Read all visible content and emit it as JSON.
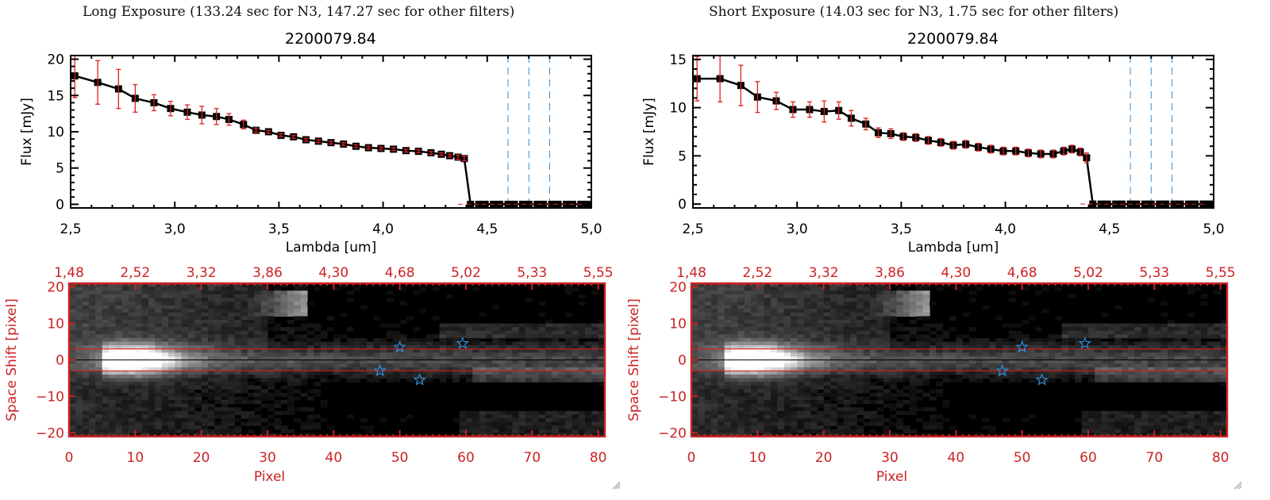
{
  "panels": [
    {
      "title": "Long Exposure (133.24 sec for N3, 147.27 sec for other filters)",
      "object_id": "2200079.84"
    },
    {
      "title": "Short Exposure (14.03 sec for N3, 1.75 sec for other filters)",
      "object_id": "2200079.84"
    }
  ],
  "chart_data": [
    {
      "type": "line",
      "title": "2200079.84",
      "subtitle": "Long Exposure (133.24 sec for N3, 147.27 sec for other filters)",
      "xlabel": "Lambda [um]",
      "ylabel": "Flux [mJy]",
      "xlim": [
        2.5,
        5.0
      ],
      "ylim": [
        -0.5,
        20.5
      ],
      "xticks": [
        "2.5",
        "3.0",
        "3.5",
        "4.0",
        "4.5",
        "5.0"
      ],
      "yticks": [
        "0",
        "5",
        "10",
        "15",
        "20"
      ],
      "grid": false,
      "series": [
        {
          "name": "flux",
          "color": "#000000",
          "x": [
            2.52,
            2.63,
            2.73,
            2.81,
            2.9,
            2.98,
            3.06,
            3.13,
            3.2,
            3.26,
            3.33,
            3.39,
            3.45,
            3.51,
            3.57,
            3.63,
            3.69,
            3.75,
            3.81,
            3.87,
            3.93,
            3.99,
            4.05,
            4.11,
            4.17,
            4.23,
            4.28,
            4.32,
            4.36,
            4.39,
            4.42,
            4.46,
            4.49,
            4.53,
            4.56,
            4.6,
            4.63,
            4.67,
            4.7,
            4.74,
            4.77,
            4.81,
            4.84,
            4.88,
            4.91,
            4.95,
            4.98
          ],
          "y": [
            17.7,
            16.8,
            15.9,
            14.6,
            14.0,
            13.2,
            12.7,
            12.3,
            12.1,
            11.7,
            11.0,
            10.2,
            10.0,
            9.5,
            9.3,
            8.9,
            8.7,
            8.5,
            8.3,
            8.0,
            7.8,
            7.7,
            7.6,
            7.4,
            7.3,
            7.1,
            6.9,
            6.7,
            6.5,
            6.3,
            0,
            0,
            0,
            0,
            0,
            0,
            0,
            0,
            0,
            0,
            0,
            0,
            0,
            0,
            0,
            0,
            0
          ],
          "yerr": [
            3.0,
            3.0,
            2.7,
            1.9,
            1.1,
            1.0,
            1.0,
            1.2,
            1.1,
            0.8,
            0.6,
            0.3,
            0.2,
            0.2,
            0.2,
            0.2,
            0.2,
            0.2,
            0.2,
            0.2,
            0.2,
            0.2,
            0.2,
            0.2,
            0.2,
            0.2,
            0.2,
            0.2,
            0.3,
            0.3,
            0,
            0,
            0,
            0,
            0,
            0,
            0,
            0,
            0,
            0,
            0,
            0,
            0,
            0,
            0,
            0,
            0
          ]
        }
      ],
      "vlines": [
        4.6,
        4.7,
        4.8
      ],
      "vline_color": "#2f8fe0",
      "zero_line_color": "#e02020",
      "errorbar_color": "#e02020"
    },
    {
      "type": "line",
      "title": "2200079.84",
      "subtitle": "Short Exposure (14.03 sec for N3, 1.75 sec for other filters)",
      "xlabel": "Lambda [um]",
      "ylabel": "Flux [mJy]",
      "xlim": [
        2.5,
        5.0
      ],
      "ylim": [
        -0.4,
        15.4
      ],
      "xticks": [
        "2.5",
        "3.0",
        "3.5",
        "4.0",
        "4.5",
        "5.0"
      ],
      "yticks": [
        "0",
        "5",
        "10",
        "15"
      ],
      "grid": false,
      "series": [
        {
          "name": "flux",
          "color": "#000000",
          "x": [
            2.52,
            2.63,
            2.73,
            2.81,
            2.9,
            2.98,
            3.06,
            3.13,
            3.2,
            3.26,
            3.33,
            3.39,
            3.45,
            3.51,
            3.57,
            3.63,
            3.69,
            3.75,
            3.81,
            3.87,
            3.93,
            3.99,
            4.05,
            4.11,
            4.17,
            4.23,
            4.28,
            4.32,
            4.36,
            4.39,
            4.42,
            4.46,
            4.49,
            4.53,
            4.56,
            4.6,
            4.63,
            4.67,
            4.7,
            4.74,
            4.77,
            4.81,
            4.84,
            4.88,
            4.91,
            4.95,
            4.98
          ],
          "y": [
            13.0,
            13.0,
            12.3,
            11.1,
            10.7,
            9.8,
            9.8,
            9.6,
            9.7,
            8.9,
            8.3,
            7.4,
            7.3,
            7.0,
            6.9,
            6.6,
            6.4,
            6.1,
            6.2,
            5.9,
            5.7,
            5.5,
            5.5,
            5.3,
            5.2,
            5.2,
            5.5,
            5.7,
            5.4,
            4.8,
            0,
            0,
            0,
            0,
            0,
            0,
            0,
            0,
            0,
            0,
            0,
            0,
            0,
            0,
            0,
            0,
            0
          ],
          "yerr": [
            2.3,
            2.4,
            2.1,
            1.6,
            0.9,
            0.8,
            0.8,
            1.1,
            0.9,
            0.8,
            0.6,
            0.5,
            0.5,
            0.4,
            0.4,
            0.4,
            0.4,
            0.4,
            0.4,
            0.4,
            0.4,
            0.4,
            0.4,
            0.4,
            0.4,
            0.4,
            0.4,
            0.4,
            0.4,
            0.5,
            0,
            0,
            0,
            0,
            0,
            0,
            0,
            0,
            0,
            0,
            0,
            0,
            0,
            0,
            0,
            0,
            0
          ]
        }
      ],
      "vlines": [
        4.6,
        4.7,
        4.8
      ],
      "vline_color": "#2f8fe0",
      "zero_line_color": "#e02020",
      "errorbar_color": "#e02020"
    },
    {
      "type": "heatmap",
      "title": "Long Exposure spectral image",
      "xlabel": "Pixel",
      "ylabel": "Space Shift [pixel]",
      "xlim": [
        0,
        81
      ],
      "ylim": [
        -21,
        21
      ],
      "xticks": [
        "0",
        "10",
        "20",
        "30",
        "40",
        "50",
        "60",
        "70",
        "80"
      ],
      "yticks": [
        "-20",
        "-10",
        "0",
        "10",
        "20"
      ],
      "top_axis_ticks": [
        "1.48",
        "2.52",
        "3.32",
        "3.86",
        "4.30",
        "4.68",
        "5.02",
        "5.33",
        "5.55"
      ],
      "aperture_lines": [
        3,
        -3
      ],
      "center_line": 0,
      "stars": [
        [
          50,
          3.5
        ],
        [
          59.5,
          4.5
        ],
        [
          47,
          -3
        ],
        [
          53,
          -5.5
        ]
      ],
      "axis_color": "#cc2222",
      "star_color": "#2f8fe0"
    },
    {
      "type": "heatmap",
      "title": "Short Exposure spectral image",
      "xlabel": "Pixel",
      "ylabel": "Space Shift [pixel]",
      "xlim": [
        0,
        81
      ],
      "ylim": [
        -21,
        21
      ],
      "xticks": [
        "0",
        "10",
        "20",
        "30",
        "40",
        "50",
        "60",
        "70",
        "80"
      ],
      "yticks": [
        "-20",
        "-10",
        "0",
        "10",
        "20"
      ],
      "top_axis_ticks": [
        "1.48",
        "2.52",
        "3.32",
        "3.86",
        "4.30",
        "4.68",
        "5.02",
        "5.33",
        "5.55"
      ],
      "aperture_lines": [
        3,
        -3
      ],
      "center_line": 0,
      "stars": [
        [
          50,
          3.5
        ],
        [
          59.5,
          4.5
        ],
        [
          47,
          -3
        ],
        [
          53,
          -5.5
        ]
      ],
      "axis_color": "#cc2222",
      "star_color": "#2f8fe0"
    }
  ]
}
